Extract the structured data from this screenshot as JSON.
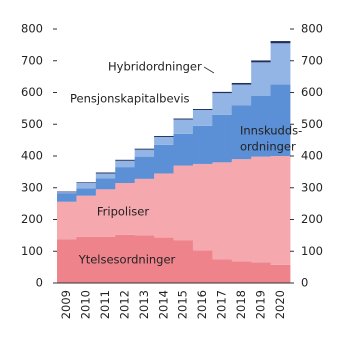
{
  "chart_data": {
    "type": "stacked-bar",
    "categories": [
      "2009",
      "2010",
      "2011",
      "2012",
      "2013",
      "2014",
      "2015",
      "2016",
      "2017",
      "2018",
      "2019",
      "2020"
    ],
    "series": [
      {
        "color": "#ef838c",
        "values": [
          138,
          145,
          145,
          152,
          150,
          143,
          135,
          103,
          75,
          68,
          65,
          57
        ]
      },
      {
        "color": "#f5a9ae",
        "values": [
          118,
          130,
          150,
          163,
          178,
          202,
          235,
          272,
          305,
          322,
          333,
          343
        ]
      },
      {
        "color": "#5b8fd6",
        "values": [
          27,
          23,
          35,
          50,
          70,
          90,
          100,
          120,
          150,
          170,
          192,
          225
        ]
      },
      {
        "color": "#93b5e6",
        "values": [
          3,
          17,
          15,
          20,
          22,
          25,
          45,
          50,
          68,
          65,
          105,
          130
        ]
      },
      {
        "color": "#1f2f5e",
        "values": [
          2,
          2,
          3,
          3,
          3,
          3,
          3,
          3,
          4,
          5,
          6,
          7
        ]
      }
    ],
    "annotations": [
      "Hybridordninger",
      "Pensjonskapitalbevis",
      "Innskudds-",
      "ordninger",
      "Fripoliser",
      "Ytelsesordninger"
    ],
    "ylim": [
      0,
      800
    ],
    "yticks": [
      0,
      100,
      200,
      300,
      400,
      500,
      600,
      700,
      800
    ],
    "y2lim": [
      0,
      800
    ],
    "y2ticks": [
      0,
      100,
      200,
      300,
      400,
      500,
      600,
      700,
      800
    ]
  }
}
